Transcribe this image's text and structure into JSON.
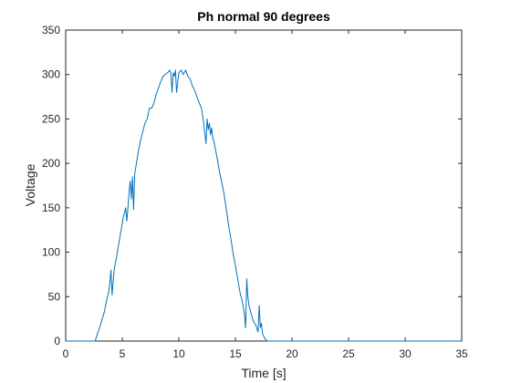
{
  "chart_data": {
    "type": "line",
    "title": "Ph normal 90 degrees",
    "xlabel": "Time [s]",
    "ylabel": "Voltage",
    "xlim": [
      0,
      35
    ],
    "ylim": [
      0,
      350
    ],
    "xticks": [
      0,
      5,
      10,
      15,
      20,
      25,
      30,
      35
    ],
    "yticks": [
      0,
      50,
      100,
      150,
      200,
      250,
      300,
      350
    ],
    "grid": false,
    "line_color": "#0072BD",
    "series": [
      {
        "x": [
          0,
          2.6,
          2.8,
          3.0,
          3.2,
          3.4,
          3.6,
          3.8,
          3.9,
          4.0,
          4.1,
          4.3,
          4.5,
          4.7,
          4.9,
          5.1,
          5.3,
          5.4,
          5.5,
          5.6,
          5.7,
          5.8,
          5.9,
          6.0,
          6.1,
          6.2,
          6.4,
          6.6,
          6.8,
          7.0,
          7.2,
          7.4,
          7.6,
          7.7,
          7.8,
          8.0,
          8.2,
          8.4,
          8.6,
          8.8,
          9.0,
          9.2,
          9.3,
          9.4,
          9.5,
          9.6,
          9.7,
          9.8,
          10.0,
          10.2,
          10.4,
          10.6,
          10.8,
          11.0,
          11.2,
          11.4,
          11.6,
          11.8,
          12.0,
          12.2,
          12.4,
          12.5,
          12.6,
          12.7,
          12.8,
          12.9,
          13.0,
          13.1,
          13.2,
          13.4,
          13.6,
          13.8,
          14.0,
          14.2,
          14.4,
          14.6,
          14.8,
          15.0,
          15.2,
          15.4,
          15.6,
          15.8,
          15.9,
          16.0,
          16.1,
          16.2,
          16.4,
          16.6,
          16.8,
          17.0,
          17.1,
          17.2,
          17.3,
          17.4,
          17.6,
          17.8,
          18.0,
          35
        ],
        "y": [
          0,
          0,
          8,
          15,
          24,
          32,
          45,
          55,
          65,
          80,
          52,
          82,
          95,
          110,
          125,
          140,
          150,
          135,
          150,
          168,
          180,
          160,
          185,
          148,
          188,
          196,
          212,
          225,
          235,
          245,
          250,
          262,
          262,
          265,
          268,
          278,
          285,
          292,
          298,
          300,
          302,
          305,
          300,
          280,
          302,
          298,
          305,
          280,
          302,
          305,
          300,
          305,
          298,
          295,
          287,
          282,
          275,
          268,
          262,
          245,
          222,
          250,
          238,
          245,
          232,
          240,
          228,
          225,
          218,
          205,
          190,
          178,
          165,
          148,
          130,
          115,
          98,
          85,
          70,
          55,
          45,
          30,
          15,
          70,
          50,
          40,
          30,
          22,
          18,
          10,
          40,
          15,
          20,
          8,
          3,
          0,
          0,
          0
        ]
      }
    ]
  }
}
